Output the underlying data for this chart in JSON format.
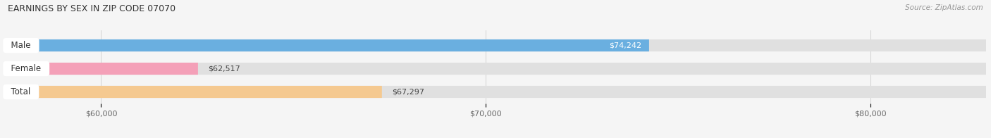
{
  "title": "EARNINGS BY SEX IN ZIP CODE 07070",
  "source": "Source: ZipAtlas.com",
  "categories": [
    "Male",
    "Female",
    "Total"
  ],
  "values": [
    74242,
    62517,
    67297
  ],
  "bar_colors": [
    "#6aafe0",
    "#f4a0b8",
    "#f5c990"
  ],
  "label_inside": [
    true,
    false,
    false
  ],
  "bar_bg_color": "#e0e0e0",
  "xmin": 57500,
  "xmax": 83000,
  "xticks": [
    60000,
    70000,
    80000
  ],
  "xtick_labels": [
    "$60,000",
    "$70,000",
    "$80,000"
  ],
  "bar_height": 0.52,
  "figsize": [
    14.06,
    1.96
  ],
  "dpi": 100,
  "background_color": "#f5f5f5",
  "title_fontsize": 9,
  "source_fontsize": 7.5,
  "label_fontsize": 8,
  "category_fontsize": 8.5,
  "tick_fontsize": 8,
  "bar_gap": 0.18
}
